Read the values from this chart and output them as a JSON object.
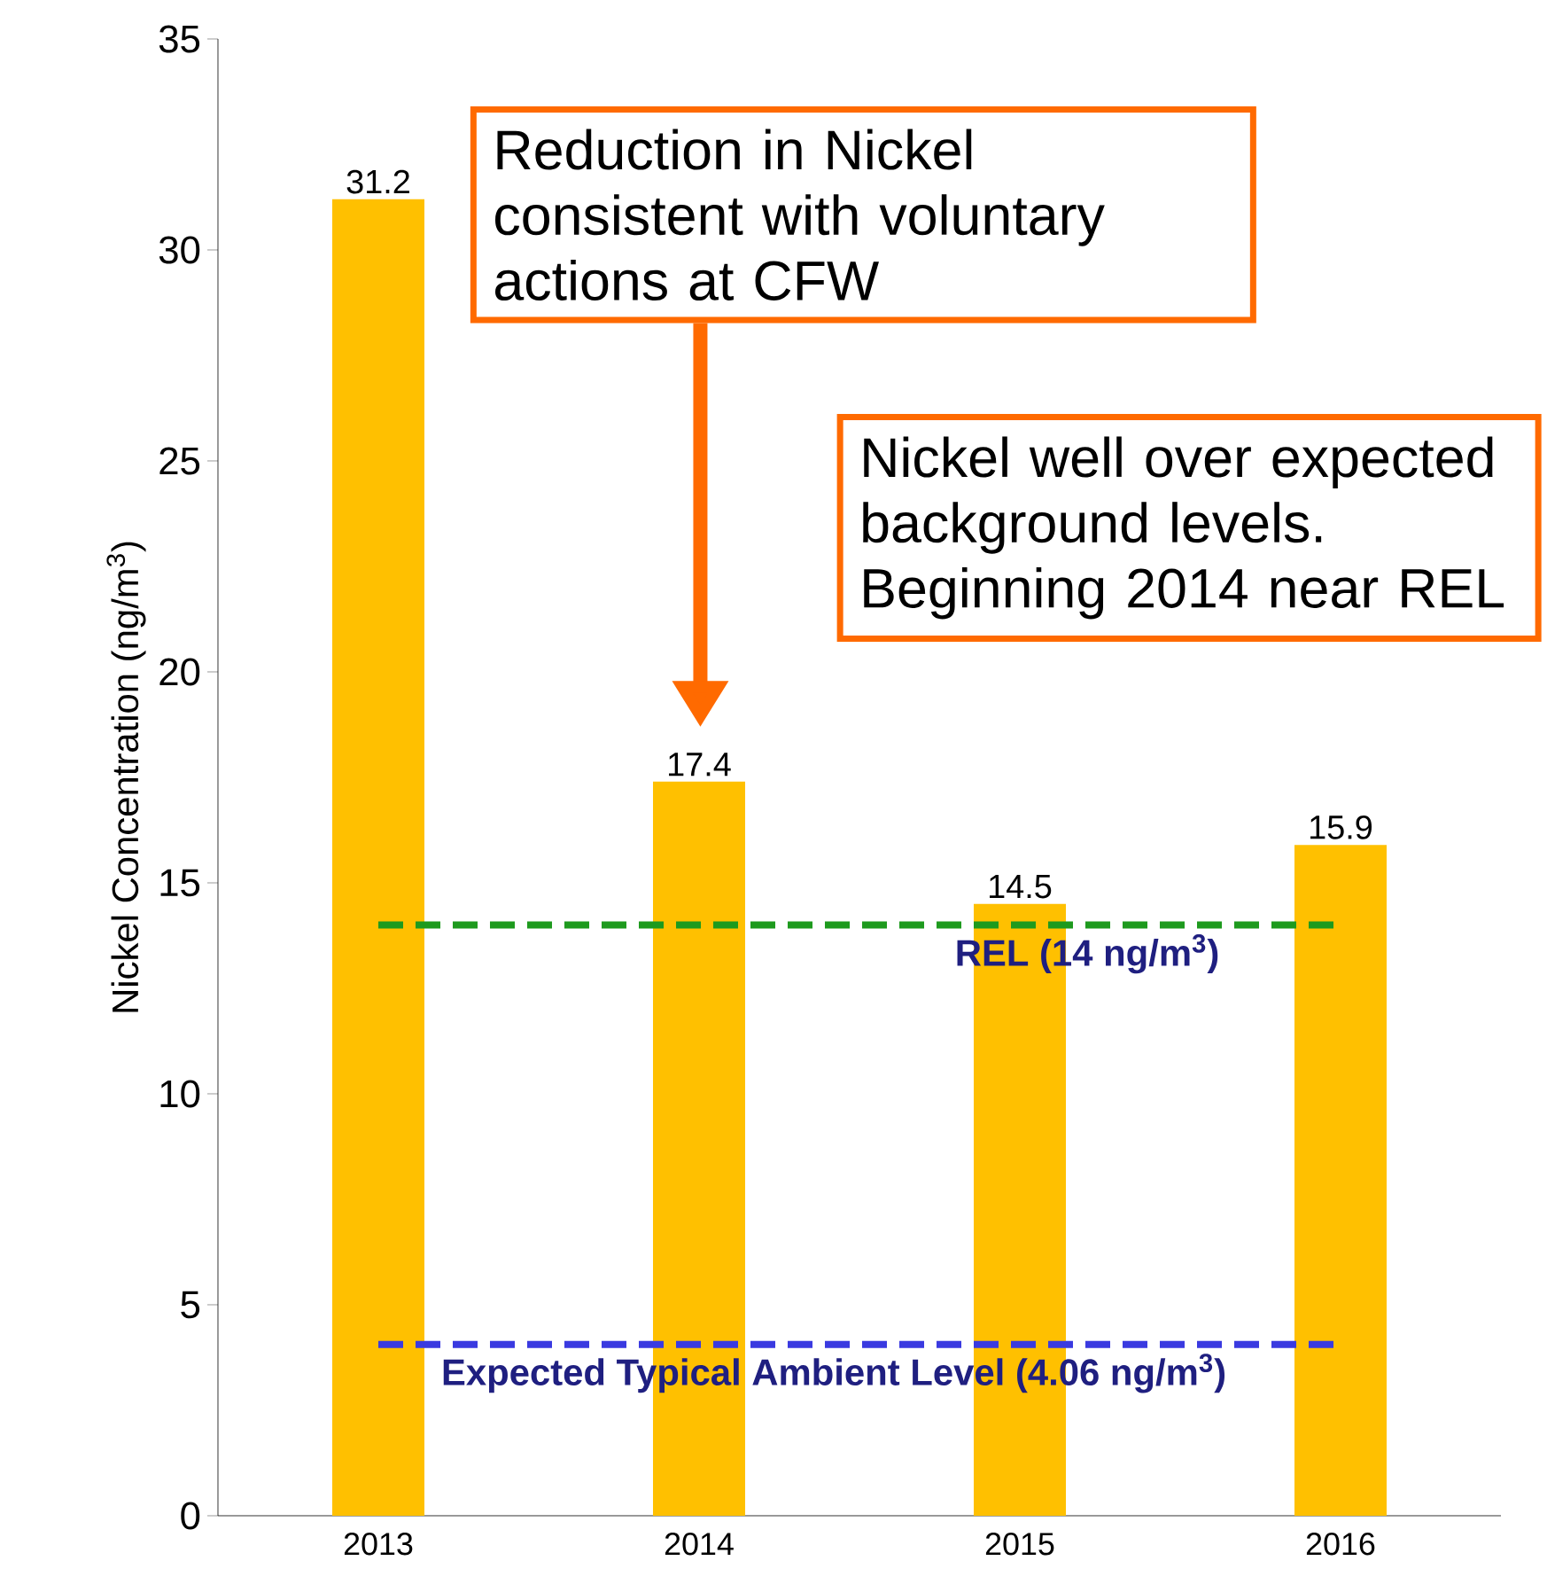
{
  "chart_data": {
    "type": "bar",
    "ylabel": "Nickel Concentration (ng/m$^{3}$)",
    "categories": [
      "2013",
      "2014",
      "2015",
      "2016"
    ],
    "values": [
      31.2,
      17.4,
      14.5,
      15.9
    ],
    "color": "#ffc000",
    "data_labels": true,
    "ylim": [
      0,
      35
    ],
    "yticks": [
      0,
      5,
      10,
      15,
      20,
      25,
      30,
      35
    ],
    "ref_lines": [
      {
        "axis": "y",
        "value": 14,
        "label": "REL (14 ng/m$^{3}$)",
        "color": "#1e9a1e",
        "line_style": "dashed"
      },
      {
        "axis": "y",
        "value": 4.06,
        "label": "Expected Typical Ambient Level (4.06 ng/m$^{3}$)",
        "color": "#3a3ae0",
        "line_style": "dashed"
      }
    ],
    "annotations": [
      "Reduction in Nickel consistent with voluntary actions at CFW",
      "Nickel well over expected background levels. Beginning 2014 near REL"
    ]
  }
}
